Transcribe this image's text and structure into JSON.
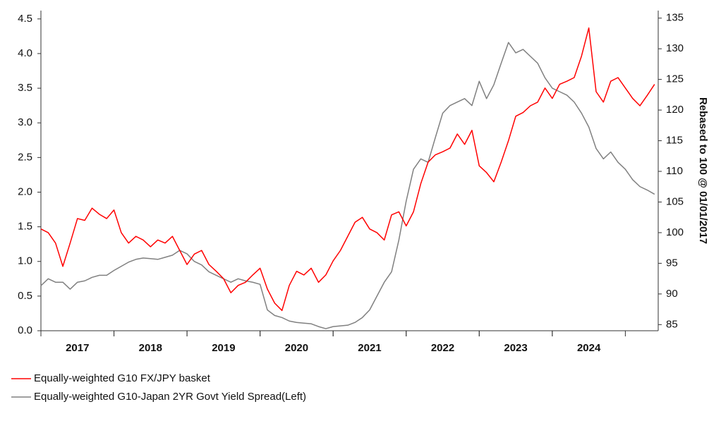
{
  "chart_data": {
    "type": "line",
    "x": [
      2017.0,
      2017.1,
      2017.2,
      2017.3,
      2017.4,
      2017.5,
      2017.6,
      2017.7,
      2017.8,
      2017.9,
      2018.0,
      2018.1,
      2018.2,
      2018.3,
      2018.4,
      2018.5,
      2018.6,
      2018.7,
      2018.8,
      2018.9,
      2019.0,
      2019.1,
      2019.2,
      2019.3,
      2019.4,
      2019.5,
      2019.6,
      2019.7,
      2019.8,
      2019.9,
      2020.0,
      2020.1,
      2020.2,
      2020.3,
      2020.4,
      2020.5,
      2020.6,
      2020.7,
      2020.8,
      2020.9,
      2021.0,
      2021.1,
      2021.2,
      2021.3,
      2021.4,
      2021.5,
      2021.6,
      2021.7,
      2021.8,
      2021.9,
      2022.0,
      2022.1,
      2022.2,
      2022.3,
      2022.4,
      2022.5,
      2022.6,
      2022.7,
      2022.8,
      2022.9,
      2023.0,
      2023.1,
      2023.2,
      2023.3,
      2023.4,
      2023.5,
      2023.6,
      2023.7,
      2023.8,
      2023.9,
      2024.0,
      2024.1,
      2024.2,
      2024.3,
      2024.4,
      2024.5,
      2024.6,
      2024.7,
      2024.8,
      2024.9,
      2025.0,
      2025.1,
      2025.2,
      2025.3,
      2025.4
    ],
    "series": [
      {
        "name": "Equally-weighted G10 FX/JPY basket",
        "color": "#ff0000",
        "axis": "y2",
        "values": [
          100.6,
          100,
          98.3,
          94.5,
          98.3,
          102.3,
          102,
          104,
          103,
          102.3,
          103.7,
          100,
          98.3,
          99.4,
          98.8,
          97.7,
          98.8,
          98.3,
          99.4,
          97.1,
          94.8,
          96.5,
          97.1,
          94.8,
          93.7,
          92.5,
          90.2,
          91.4,
          91.9,
          93.1,
          94.2,
          90.8,
          88.5,
          87.3,
          91.4,
          93.7,
          93.1,
          94.2,
          91.9,
          93.1,
          95.4,
          97.1,
          99.4,
          101.7,
          102.5,
          100.6,
          100,
          98.8,
          102.9,
          103.4,
          101.1,
          103.4,
          108,
          111.5,
          112.7,
          113.2,
          113.8,
          116.1,
          114.4,
          116.7,
          110.9,
          109.8,
          108.3,
          111.5,
          115,
          119,
          119.6,
          120.7,
          121.3,
          123.6,
          121.9,
          124.2,
          124.7,
          125.3,
          128.8,
          133.4,
          123,
          121.3,
          124.7,
          125.3,
          123.6,
          121.9,
          120.7,
          122.4,
          124.2
        ]
      },
      {
        "name": "Equally-weighted G10-Japan 2YR Govt Yield Spread(Left)",
        "color": "#808080",
        "values": [
          0.65,
          0.75,
          0.7,
          0.7,
          0.6,
          0.7,
          0.72,
          0.77,
          0.8,
          0.8,
          0.87,
          0.93,
          0.99,
          1.03,
          1.05,
          1.04,
          1.03,
          1.06,
          1.09,
          1.16,
          1.11,
          1.0,
          0.95,
          0.85,
          0.8,
          0.75,
          0.7,
          0.75,
          0.72,
          0.7,
          0.67,
          0.3,
          0.22,
          0.19,
          0.14,
          0.12,
          0.11,
          0.1,
          0.06,
          0.03,
          0.06,
          0.07,
          0.08,
          0.12,
          0.19,
          0.3,
          0.5,
          0.7,
          0.85,
          1.31,
          1.87,
          2.33,
          2.48,
          2.43,
          2.79,
          3.14,
          3.25,
          3.3,
          3.35,
          3.25,
          3.6,
          3.35,
          3.55,
          3.86,
          4.16,
          4.01,
          4.06,
          3.96,
          3.86,
          3.65,
          3.5,
          3.45,
          3.4,
          3.3,
          3.14,
          2.94,
          2.63,
          2.48,
          2.58,
          2.43,
          2.33,
          2.18,
          2.08,
          2.03,
          1.97
        ]
      }
    ],
    "xlim": [
      2017,
      2025.45
    ],
    "xticks": [
      {
        "value": 2017.5,
        "label": "2017"
      },
      {
        "value": 2018.5,
        "label": "2018"
      },
      {
        "value": 2019.5,
        "label": "2019"
      },
      {
        "value": 2020.5,
        "label": "2020"
      },
      {
        "value": 2021.5,
        "label": "2021"
      },
      {
        "value": 2022.5,
        "label": "2022"
      },
      {
        "value": 2023.5,
        "label": "2023"
      },
      {
        "value": 2024.5,
        "label": "2024"
      }
    ],
    "ylim": [
      0,
      4.6
    ],
    "yticks": [
      {
        "value": 0,
        "label": "0.0"
      },
      0.5,
      {
        "value": 1,
        "label": "1.0"
      },
      1.5,
      {
        "value": 2,
        "label": "2.0"
      },
      2.5,
      {
        "value": 3,
        "label": "3.0"
      },
      3.5,
      {
        "value": 4,
        "label": "4.0"
      },
      4.5
    ],
    "y2lim": [
      84,
      136
    ],
    "y2ticks": [
      85,
      90,
      95,
      100,
      105,
      110,
      115,
      120,
      125,
      130,
      135
    ],
    "y2label": "Rebased to 100 @ 01/01/2017",
    "grid": false,
    "legend": "bottom-left"
  }
}
